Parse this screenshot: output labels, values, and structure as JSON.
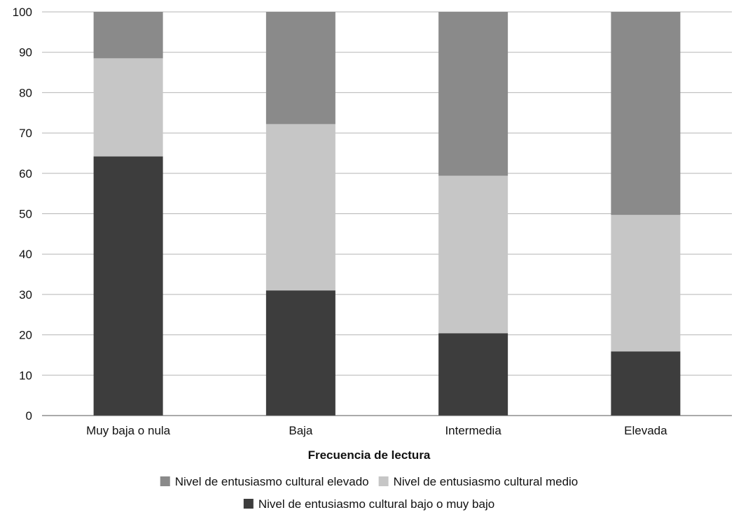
{
  "chart_data": {
    "type": "bar",
    "stacked": true,
    "categories": [
      "Muy baja o nula",
      "Baja",
      "Intermedia",
      "Elevada"
    ],
    "series": [
      {
        "name": "Nivel de entusiasmo cultural bajo o muy bajo",
        "values": [
          64.2,
          31.0,
          20.4,
          15.9
        ],
        "color": "#3d3d3d"
      },
      {
        "name": "Nivel de entusiasmo cultural medio",
        "values": [
          24.3,
          41.2,
          39.0,
          33.8
        ],
        "color": "#c6c6c6"
      },
      {
        "name": "Nivel de entusiasmo cultural elevado",
        "values": [
          11.5,
          27.8,
          40.6,
          50.3
        ],
        "color": "#8a8a8a"
      }
    ],
    "title": "",
    "xlabel": "Frecuencia de lectura",
    "ylabel": "",
    "ylim": [
      0,
      100
    ],
    "yticks": [
      0,
      10,
      20,
      30,
      40,
      50,
      60,
      70,
      80,
      90,
      100
    ],
    "grid": true,
    "legend_position": "bottom",
    "legend_rows": [
      [
        "Nivel de entusiasmo cultural elevado",
        "Nivel de entusiasmo cultural medio"
      ],
      [
        "Nivel de entusiasmo cultural bajo o muy bajo"
      ]
    ]
  }
}
